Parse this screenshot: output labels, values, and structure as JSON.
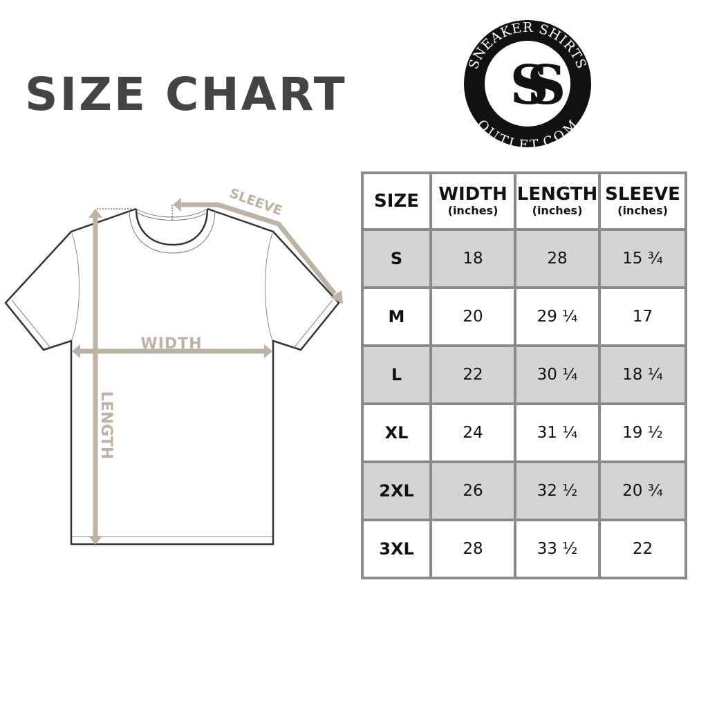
{
  "title": "SIZE CHART",
  "logo": {
    "top_text": "SNEAKER SHIRTS",
    "bottom_text": "OUTLET.COM",
    "monogram": "SS"
  },
  "diagram": {
    "width_label": "WIDTH",
    "length_label": "LENGTH",
    "sleeve_label": "SLEEVE",
    "accent_color": "#bdb2a3"
  },
  "table": {
    "headers": [
      {
        "main": "SIZE",
        "sub": ""
      },
      {
        "main": "WIDTH",
        "sub": "(inches)"
      },
      {
        "main": "LENGTH",
        "sub": "(inches)"
      },
      {
        "main": "SLEEVE",
        "sub": "(inches)"
      }
    ],
    "rows": [
      [
        "S",
        "18",
        "28",
        "15 ¾"
      ],
      [
        "M",
        "20",
        "29 ¼",
        "17"
      ],
      [
        "L",
        "22",
        "30 ¼",
        "18 ¼"
      ],
      [
        "XL",
        "24",
        "31 ¼",
        "19 ½"
      ],
      [
        "2XL",
        "26",
        "32 ½",
        "20 ¾"
      ],
      [
        "3XL",
        "28",
        "33 ½",
        "22"
      ]
    ],
    "shade_color": "#d4d4d4",
    "border_color": "#8a8a8a"
  }
}
